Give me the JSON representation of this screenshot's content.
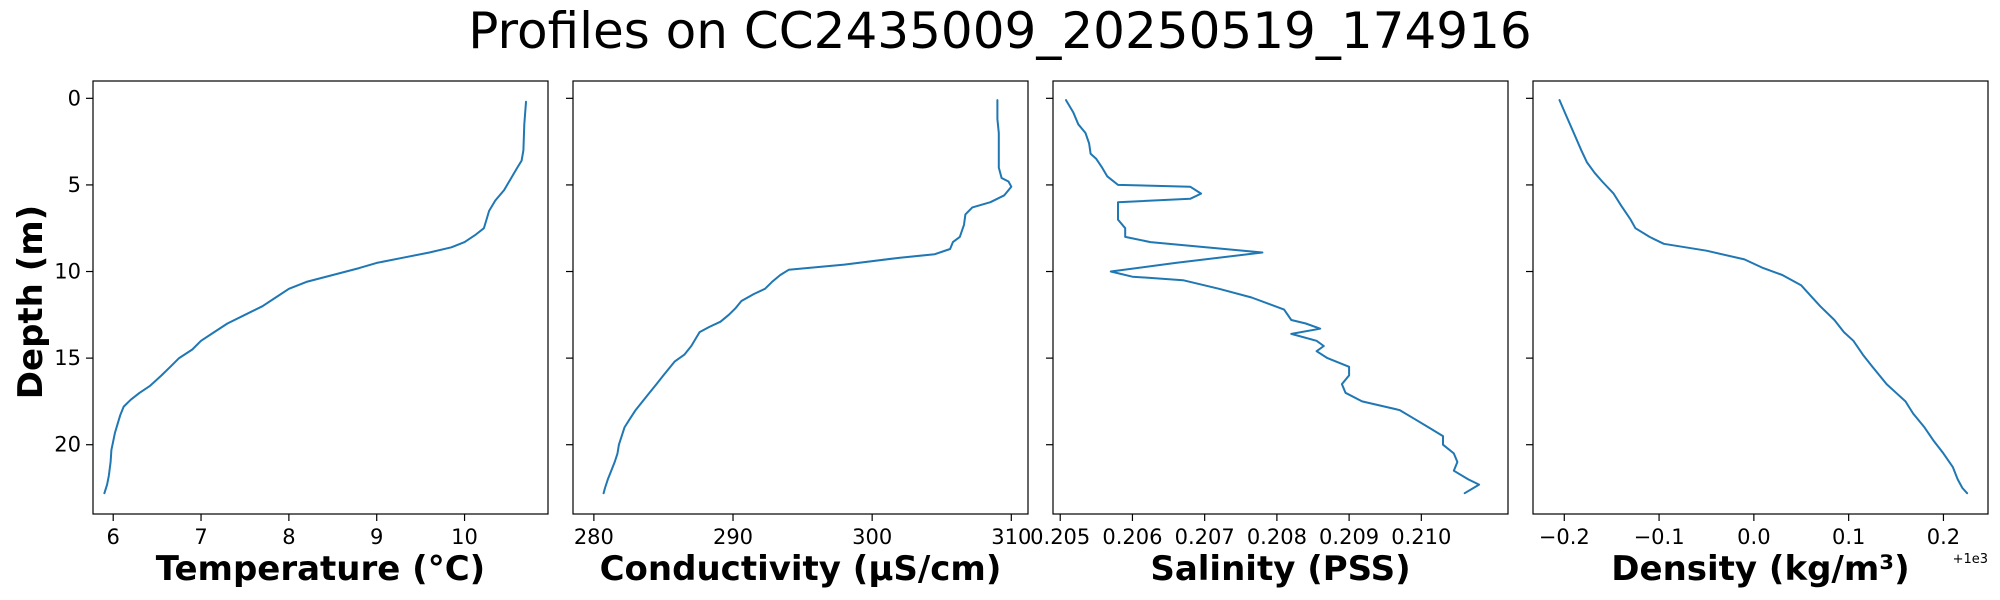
{
  "figure": {
    "title": "Profiles on CC2435009_20250519_174916",
    "ylabel": "Depth (m)"
  },
  "chart_data": [
    {
      "type": "line",
      "xlabel": "Temperature (°C)",
      "ylabel": "Depth (m)",
      "xlim": [
        5.77,
        10.95
      ],
      "ylim": [
        24,
        -1
      ],
      "y_inverted": true,
      "xticks": [
        "6",
        "7",
        "8",
        "9",
        "10"
      ],
      "xtick_values": [
        6,
        7,
        8,
        9,
        10
      ],
      "yticks": [
        "0",
        "5",
        "10",
        "15",
        "20"
      ],
      "ytick_values": [
        0,
        5,
        10,
        15,
        20
      ],
      "grid": false,
      "color": "#1f77b4",
      "points": [
        [
          10.7,
          0.2
        ],
        [
          10.68,
          1.5
        ],
        [
          10.67,
          3.0
        ],
        [
          10.65,
          3.6
        ],
        [
          10.6,
          4.0
        ],
        [
          10.52,
          4.7
        ],
        [
          10.45,
          5.3
        ],
        [
          10.35,
          5.9
        ],
        [
          10.28,
          6.5
        ],
        [
          10.25,
          7.0
        ],
        [
          10.22,
          7.5
        ],
        [
          10.12,
          7.9
        ],
        [
          10.0,
          8.3
        ],
        [
          9.85,
          8.6
        ],
        [
          9.6,
          8.9
        ],
        [
          9.3,
          9.2
        ],
        [
          9.0,
          9.5
        ],
        [
          8.8,
          9.8
        ],
        [
          8.5,
          10.2
        ],
        [
          8.2,
          10.6
        ],
        [
          8.0,
          11.0
        ],
        [
          7.85,
          11.5
        ],
        [
          7.7,
          12.0
        ],
        [
          7.5,
          12.5
        ],
        [
          7.3,
          13.0
        ],
        [
          7.15,
          13.5
        ],
        [
          7.0,
          14.0
        ],
        [
          6.9,
          14.5
        ],
        [
          6.75,
          15.0
        ],
        [
          6.65,
          15.5
        ],
        [
          6.55,
          16.0
        ],
        [
          6.42,
          16.6
        ],
        [
          6.3,
          17.0
        ],
        [
          6.2,
          17.4
        ],
        [
          6.12,
          17.8
        ],
        [
          6.08,
          18.3
        ],
        [
          6.05,
          18.8
        ],
        [
          6.02,
          19.3
        ],
        [
          6.0,
          19.8
        ],
        [
          5.98,
          20.3
        ],
        [
          5.97,
          21.0
        ],
        [
          5.95,
          21.8
        ],
        [
          5.93,
          22.3
        ],
        [
          5.9,
          22.8
        ]
      ]
    },
    {
      "type": "line",
      "xlabel": "Conductivity (µS/cm)",
      "ylabel": "Depth (m)",
      "xlim": [
        278.5,
        311.2
      ],
      "ylim": [
        24,
        -1
      ],
      "y_inverted": true,
      "xticks": [
        "280",
        "290",
        "300",
        "310"
      ],
      "xtick_values": [
        280,
        290,
        300,
        310
      ],
      "yticks": [
        "0",
        "5",
        "10",
        "15",
        "20"
      ],
      "ytick_values": [
        0,
        5,
        10,
        15,
        20
      ],
      "grid": false,
      "color": "#1f77b4",
      "points": [
        [
          309.0,
          0.1
        ],
        [
          309.0,
          1.2
        ],
        [
          309.1,
          2.0
        ],
        [
          309.1,
          3.0
        ],
        [
          309.1,
          4.0
        ],
        [
          309.3,
          4.6
        ],
        [
          309.8,
          4.8
        ],
        [
          310.0,
          5.1
        ],
        [
          309.5,
          5.6
        ],
        [
          308.5,
          6.0
        ],
        [
          307.2,
          6.3
        ],
        [
          306.7,
          6.7
        ],
        [
          306.6,
          7.3
        ],
        [
          306.3,
          8.0
        ],
        [
          305.8,
          8.3
        ],
        [
          305.6,
          8.7
        ],
        [
          304.5,
          9.0
        ],
        [
          302.0,
          9.2
        ],
        [
          298.0,
          9.6
        ],
        [
          294.0,
          9.9
        ],
        [
          293.4,
          10.2
        ],
        [
          292.8,
          10.6
        ],
        [
          292.3,
          11.0
        ],
        [
          291.5,
          11.3
        ],
        [
          290.6,
          11.7
        ],
        [
          290.2,
          12.1
        ],
        [
          289.7,
          12.5
        ],
        [
          289.1,
          12.9
        ],
        [
          288.3,
          13.2
        ],
        [
          287.6,
          13.5
        ],
        [
          287.3,
          13.9
        ],
        [
          287.0,
          14.3
        ],
        [
          286.5,
          14.8
        ],
        [
          285.8,
          15.2
        ],
        [
          285.4,
          15.6
        ],
        [
          285.0,
          16.0
        ],
        [
          284.5,
          16.5
        ],
        [
          284.0,
          17.0
        ],
        [
          283.5,
          17.5
        ],
        [
          283.0,
          18.0
        ],
        [
          282.6,
          18.5
        ],
        [
          282.2,
          19.0
        ],
        [
          282.0,
          19.5
        ],
        [
          281.8,
          20.0
        ],
        [
          281.7,
          20.5
        ],
        [
          281.5,
          21.0
        ],
        [
          281.2,
          21.6
        ],
        [
          281.0,
          22.0
        ],
        [
          280.8,
          22.5
        ],
        [
          280.7,
          22.8
        ]
      ]
    },
    {
      "type": "line",
      "xlabel": "Salinity (PSS)",
      "ylabel": "Depth (m)",
      "xlim": [
        0.2049,
        0.2112
      ],
      "ylim": [
        24,
        -1
      ],
      "y_inverted": true,
      "xticks": [
        "0.205",
        "0.206",
        "0.207",
        "0.208",
        "0.209",
        "0.210"
      ],
      "xtick_values": [
        0.205,
        0.206,
        0.207,
        0.208,
        0.209,
        0.21
      ],
      "yticks": [
        "0",
        "5",
        "10",
        "15",
        "20"
      ],
      "ytick_values": [
        0,
        5,
        10,
        15,
        20
      ],
      "grid": false,
      "color": "#1f77b4",
      "points": [
        [
          0.20508,
          0.1
        ],
        [
          0.20518,
          0.8
        ],
        [
          0.20525,
          1.5
        ],
        [
          0.20535,
          2.0
        ],
        [
          0.2054,
          2.6
        ],
        [
          0.20542,
          3.2
        ],
        [
          0.2055,
          3.5
        ],
        [
          0.20558,
          4.0
        ],
        [
          0.20565,
          4.5
        ],
        [
          0.2058,
          5.0
        ],
        [
          0.2068,
          5.1
        ],
        [
          0.20695,
          5.5
        ],
        [
          0.2068,
          5.8
        ],
        [
          0.2058,
          6.0
        ],
        [
          0.2058,
          6.5
        ],
        [
          0.2058,
          7.0
        ],
        [
          0.2059,
          7.5
        ],
        [
          0.2059,
          8.0
        ],
        [
          0.20625,
          8.3
        ],
        [
          0.2078,
          8.9
        ],
        [
          0.2066,
          9.5
        ],
        [
          0.2057,
          10.0
        ],
        [
          0.206,
          10.3
        ],
        [
          0.2067,
          10.5
        ],
        [
          0.2072,
          11.0
        ],
        [
          0.20765,
          11.5
        ],
        [
          0.2081,
          12.2
        ],
        [
          0.2082,
          12.8
        ],
        [
          0.2084,
          13.0
        ],
        [
          0.2086,
          13.3
        ],
        [
          0.2082,
          13.6
        ],
        [
          0.20855,
          14.0
        ],
        [
          0.20865,
          14.3
        ],
        [
          0.20855,
          14.6
        ],
        [
          0.2087,
          15.0
        ],
        [
          0.209,
          15.5
        ],
        [
          0.209,
          16.0
        ],
        [
          0.2089,
          16.5
        ],
        [
          0.20895,
          17.0
        ],
        [
          0.20918,
          17.5
        ],
        [
          0.2097,
          18.0
        ],
        [
          0.2099,
          18.5
        ],
        [
          0.2101,
          19.0
        ],
        [
          0.2103,
          19.5
        ],
        [
          0.2103,
          20.0
        ],
        [
          0.21045,
          20.5
        ],
        [
          0.2105,
          21.0
        ],
        [
          0.21045,
          21.5
        ],
        [
          0.21065,
          22.0
        ],
        [
          0.2108,
          22.3
        ],
        [
          0.2106,
          22.8
        ]
      ]
    },
    {
      "type": "line",
      "xlabel": "Density (kg/m³)",
      "ylabel": "Depth (m)",
      "offset_label": "+1e3",
      "xlim": [
        -0.233,
        0.247
      ],
      "ylim": [
        24,
        -1
      ],
      "y_inverted": true,
      "xticks": [
        "−0.2",
        "−0.1",
        "0.0",
        "0.1",
        "0.2"
      ],
      "xtick_values": [
        -0.2,
        -0.1,
        0.0,
        0.1,
        0.2
      ],
      "yticks": [
        "0",
        "5",
        "10",
        "15",
        "20"
      ],
      "ytick_values": [
        0,
        5,
        10,
        15,
        20
      ],
      "grid": false,
      "color": "#1f77b4",
      "points": [
        [
          -0.205,
          0.1
        ],
        [
          -0.198,
          1.0
        ],
        [
          -0.19,
          2.0
        ],
        [
          -0.182,
          3.0
        ],
        [
          -0.176,
          3.7
        ],
        [
          -0.168,
          4.3
        ],
        [
          -0.16,
          4.8
        ],
        [
          -0.148,
          5.5
        ],
        [
          -0.14,
          6.2
        ],
        [
          -0.13,
          7.0
        ],
        [
          -0.125,
          7.5
        ],
        [
          -0.11,
          8.0
        ],
        [
          -0.095,
          8.4
        ],
        [
          -0.05,
          8.8
        ],
        [
          -0.01,
          9.3
        ],
        [
          0.01,
          9.8
        ],
        [
          0.03,
          10.2
        ],
        [
          0.05,
          10.8
        ],
        [
          0.06,
          11.4
        ],
        [
          0.07,
          12.0
        ],
        [
          0.085,
          12.8
        ],
        [
          0.095,
          13.5
        ],
        [
          0.105,
          14.0
        ],
        [
          0.115,
          14.8
        ],
        [
          0.125,
          15.5
        ],
        [
          0.14,
          16.5
        ],
        [
          0.15,
          17.0
        ],
        [
          0.16,
          17.5
        ],
        [
          0.168,
          18.2
        ],
        [
          0.18,
          19.0
        ],
        [
          0.19,
          19.8
        ],
        [
          0.2,
          20.5
        ],
        [
          0.21,
          21.3
        ],
        [
          0.215,
          22.0
        ],
        [
          0.22,
          22.5
        ],
        [
          0.225,
          22.8
        ]
      ]
    }
  ]
}
